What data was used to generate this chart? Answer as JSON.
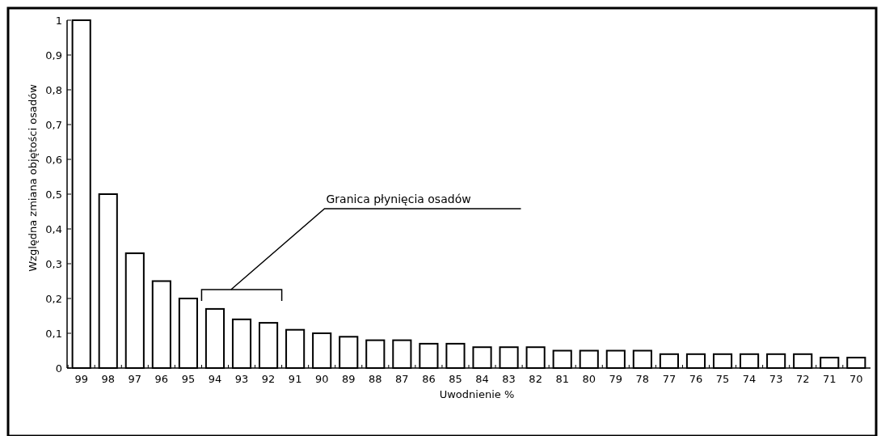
{
  "chart_data": {
    "type": "bar",
    "xlabel": "Uwodnienie %",
    "ylabel": "Względna zmiana objętości osadów",
    "categories": [
      "99",
      "98",
      "97",
      "96",
      "95",
      "94",
      "93",
      "92",
      "91",
      "90",
      "89",
      "88",
      "87",
      "86",
      "85",
      "84",
      "83",
      "82",
      "81",
      "80",
      "79",
      "78",
      "77",
      "76",
      "75",
      "74",
      "73",
      "72",
      "71",
      "70"
    ],
    "values": [
      1,
      0.5,
      0.33,
      0.25,
      0.2,
      0.17,
      0.14,
      0.13,
      0.11,
      0.1,
      0.09,
      0.08,
      0.08,
      0.07,
      0.07,
      0.06,
      0.06,
      0.06,
      0.05,
      0.05,
      0.05,
      0.05,
      0.04,
      0.04,
      0.04,
      0.04,
      0.04,
      0.04,
      0.03,
      0.03
    ],
    "color": "#ffffff",
    "ylim": [
      0,
      1
    ],
    "yticks": [
      0,
      {
        "value": 0.1,
        "label": "0,1"
      },
      {
        "value": 0.2,
        "label": "0,2"
      },
      {
        "value": 0.3,
        "label": "0,3"
      },
      {
        "value": 0.4,
        "label": "0,4"
      },
      {
        "value": 0.5,
        "label": "0,5"
      },
      {
        "value": 0.6,
        "label": "0,6"
      },
      {
        "value": 0.7,
        "label": "0,7"
      },
      {
        "value": 0.8,
        "label": "0,8"
      },
      {
        "value": 0.9,
        "label": "0,9"
      },
      1
    ],
    "grid": false,
    "annotations": [
      "Granica płynięcia osadów"
    ]
  }
}
